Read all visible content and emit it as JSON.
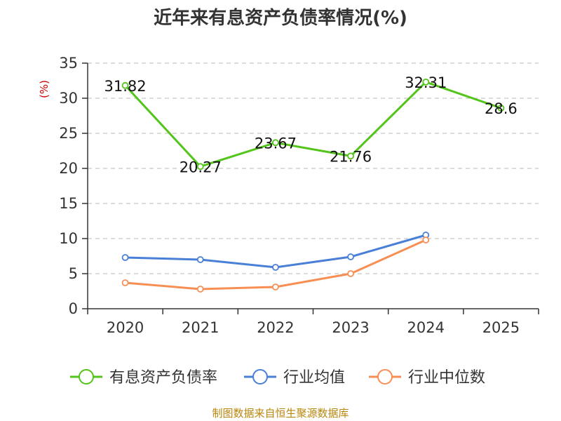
{
  "chart_data": {
    "type": "line",
    "title": "近年来有息资产负债率情况(%)",
    "unit": "(%)",
    "categories": [
      "2020",
      "2021",
      "2022",
      "2023",
      "2024",
      "2025"
    ],
    "ylim": [
      0,
      35
    ],
    "yticks": [
      "0",
      "5",
      "10",
      "15",
      "20",
      "25",
      "30",
      "35"
    ],
    "grid": true,
    "legend_position": "bottom",
    "series": [
      {
        "name": "有息资产负债率",
        "color": "#52c41a",
        "values": [
          31.82,
          20.27,
          23.67,
          21.76,
          32.31,
          28.6
        ],
        "labels": [
          "31.82",
          "20.27",
          "23.67",
          "21.76",
          "32.31",
          "28.6"
        ]
      },
      {
        "name": "行业均值",
        "color": "#4a7fd8",
        "values": [
          7.3,
          7.0,
          5.9,
          7.4,
          10.5,
          null
        ],
        "labels": []
      },
      {
        "name": "行业中位数",
        "color": "#f78f55",
        "values": [
          3.7,
          2.8,
          3.1,
          5.0,
          9.8,
          null
        ],
        "labels": []
      }
    ],
    "source": "制图数据来自恒生聚源数据库"
  }
}
